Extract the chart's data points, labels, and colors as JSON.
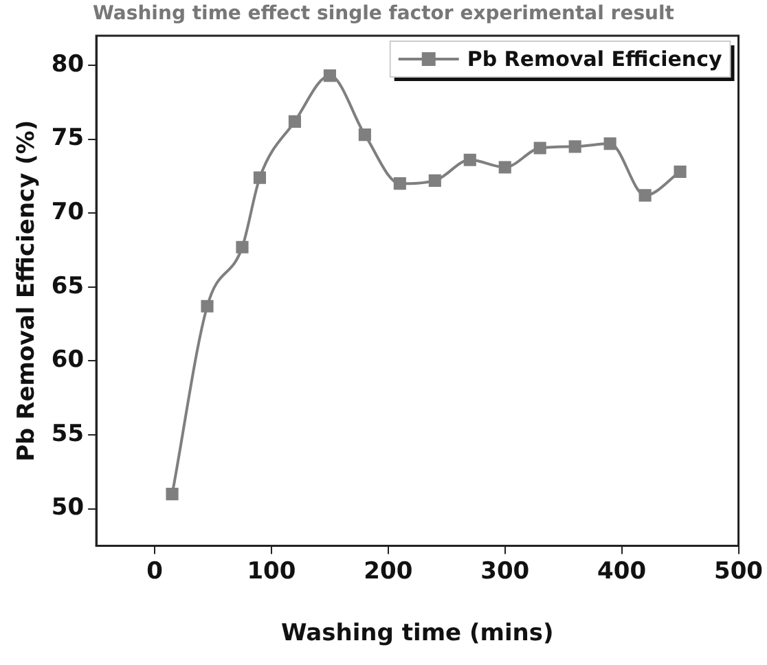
{
  "chart_data": {
    "type": "line",
    "title": "Washing time effect single factor experimental result",
    "xlabel": "Washing time (mins)",
    "ylabel": "Pb Removal Efficiency (%)",
    "x": [
      15,
      45,
      75,
      90,
      120,
      150,
      180,
      210,
      240,
      270,
      300,
      330,
      360,
      390,
      420,
      450
    ],
    "series": [
      {
        "name": "Pb Removal Efficiency",
        "color": "#7f7f7f",
        "values": [
          51.0,
          63.7,
          67.7,
          72.4,
          76.2,
          79.3,
          75.3,
          72.0,
          72.2,
          73.6,
          73.1,
          74.4,
          74.5,
          74.7,
          71.2,
          72.8
        ]
      }
    ],
    "xlim": [
      -50,
      500
    ],
    "xticks": [
      0,
      100,
      200,
      300,
      400,
      500
    ],
    "ylim": [
      47.5,
      82
    ],
    "yticks": [
      50,
      55,
      60,
      65,
      70,
      75,
      80
    ],
    "grid": false,
    "legend": "top right",
    "marker": "square",
    "line_style": "solid"
  }
}
